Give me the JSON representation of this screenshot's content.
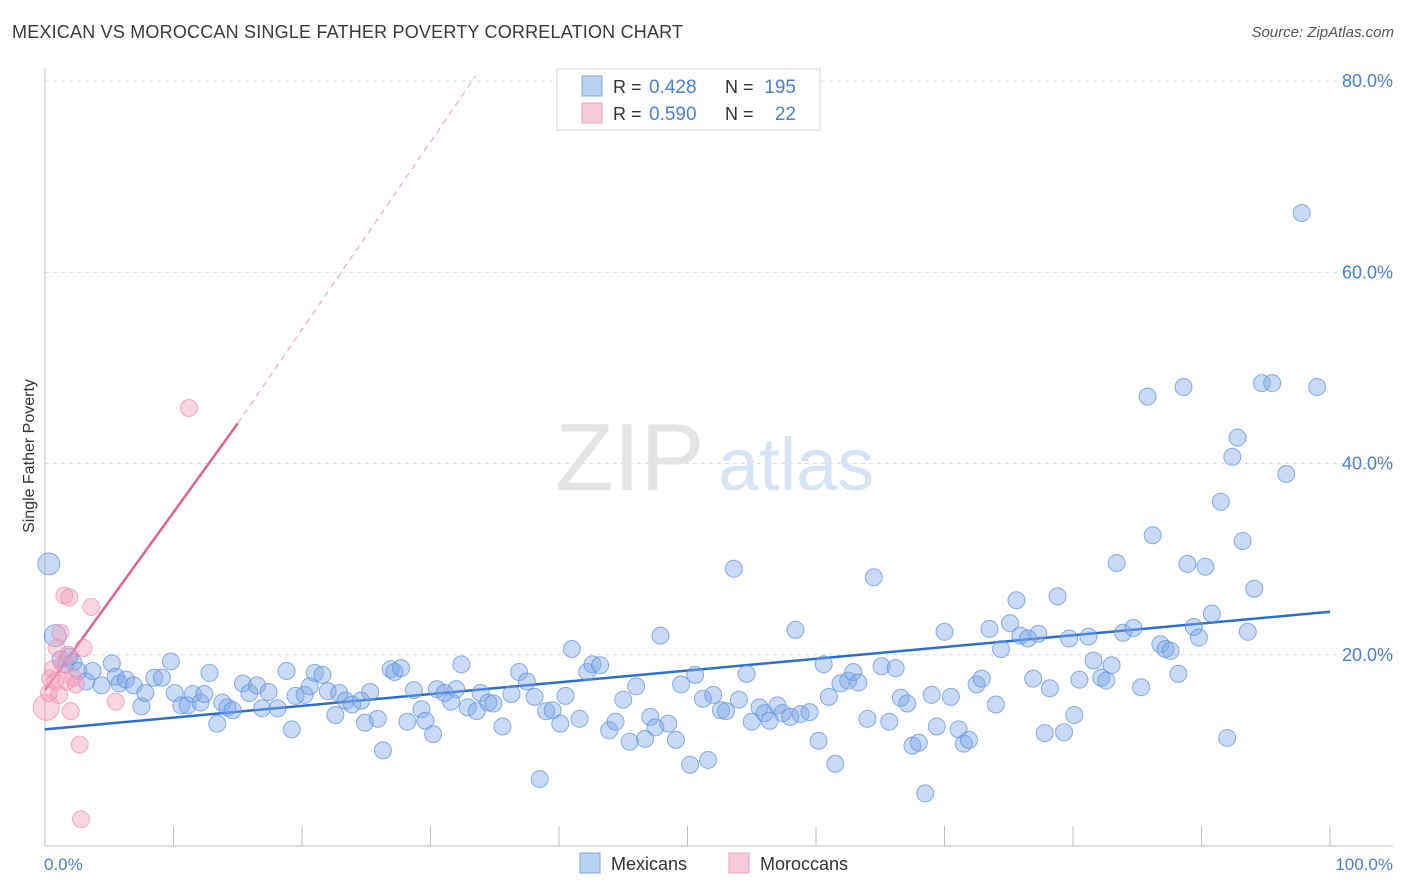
{
  "title": "MEXICAN VS MOROCCAN SINGLE FATHER POVERTY CORRELATION CHART",
  "source": "Source: ZipAtlas.com",
  "watermark": {
    "zip": "ZIP",
    "atlas": "atlas"
  },
  "legend_top": [
    {
      "r_label": "R =",
      "r_value": "0.428",
      "n_label": "N =",
      "n_value": "195",
      "color": "#7ba7e6"
    },
    {
      "r_label": "R =",
      "r_value": "0.590",
      "n_label": "N =",
      "n_value": "22",
      "color": "#f2a0bd"
    }
  ],
  "legend_bottom": [
    "Mexicans",
    "Moroccans"
  ],
  "chart_data": {
    "type": "scatter",
    "title": "MEXICAN VS MOROCCAN SINGLE FATHER POVERTY CORRELATION CHART",
    "xlabel": "",
    "ylabel": "Single Father Poverty",
    "xlim": [
      0,
      100
    ],
    "ylim": [
      0,
      80
    ],
    "x_tick_labels": [
      "0.0%",
      "100.0%"
    ],
    "y_tick_labels": [
      {
        "value": 20,
        "label": "20.0%"
      },
      {
        "value": 40,
        "label": "40.0%"
      },
      {
        "value": 60,
        "label": "60.0%"
      },
      {
        "value": 80,
        "label": "80.0%"
      }
    ],
    "colors": {
      "mexicans": "#7ba7e6",
      "moroccans": "#f2a0bd",
      "mex_line": "#2a6fd0",
      "mor_line": "#e0628f",
      "axis_text": "#4a7fd6"
    },
    "series": [
      {
        "name": "Mexicans",
        "r": 0.428,
        "n": 195,
        "trend": {
          "x0": 0,
          "y0": 12.2,
          "x1": 100,
          "y1": 24.5
        },
        "points": [
          [
            0.3,
            29.5
          ],
          [
            0.8,
            22
          ],
          [
            1.2,
            19.5
          ],
          [
            1.6,
            19
          ],
          [
            1.9,
            19.8
          ],
          [
            2.2,
            19.2
          ],
          [
            2.6,
            18.3
          ],
          [
            3.2,
            17.2
          ],
          [
            3.7,
            18.3
          ],
          [
            4.4,
            16.8
          ],
          [
            5.2,
            19.1
          ],
          [
            5.5,
            17.7
          ],
          [
            5.8,
            17
          ],
          [
            6.3,
            17.4
          ],
          [
            6.9,
            16.8
          ],
          [
            7.5,
            14.6
          ],
          [
            7.8,
            16
          ],
          [
            8.5,
            17.6
          ],
          [
            9.1,
            17.6
          ],
          [
            9.8,
            19.3
          ],
          [
            10.1,
            16
          ],
          [
            10.6,
            14.7
          ],
          [
            11.1,
            14.7
          ],
          [
            11.5,
            15.9
          ],
          [
            12.1,
            15
          ],
          [
            12.4,
            15.9
          ],
          [
            12.8,
            18.1
          ],
          [
            13.4,
            12.8
          ],
          [
            13.8,
            15
          ],
          [
            14.2,
            14.5
          ],
          [
            14.6,
            14.2
          ],
          [
            15.4,
            17
          ],
          [
            15.9,
            16
          ],
          [
            16.5,
            16.8
          ],
          [
            16.9,
            14.4
          ],
          [
            17.4,
            16.1
          ],
          [
            18.1,
            14.4
          ],
          [
            18.8,
            18.3
          ],
          [
            19.2,
            12.2
          ],
          [
            19.5,
            15.7
          ],
          [
            20.2,
            15.8
          ],
          [
            20.6,
            16.7
          ],
          [
            21,
            18.1
          ],
          [
            21.6,
            17.9
          ],
          [
            22,
            16.2
          ],
          [
            22.6,
            13.7
          ],
          [
            22.9,
            16
          ],
          [
            23.4,
            15.2
          ],
          [
            23.9,
            14.8
          ],
          [
            24.6,
            15.2
          ],
          [
            24.9,
            12.9
          ],
          [
            25.3,
            16.1
          ],
          [
            25.9,
            13.3
          ],
          [
            26.3,
            10
          ],
          [
            26.9,
            18.5
          ],
          [
            27.2,
            18.2
          ],
          [
            27.7,
            18.6
          ],
          [
            28.2,
            13
          ],
          [
            28.7,
            16.3
          ],
          [
            29.3,
            14.3
          ],
          [
            29.6,
            13.1
          ],
          [
            30.2,
            11.7
          ],
          [
            30.5,
            16.4
          ],
          [
            31.1,
            16
          ],
          [
            31.6,
            15.1
          ],
          [
            32,
            16.4
          ],
          [
            32.4,
            19
          ],
          [
            32.9,
            14.5
          ],
          [
            33.6,
            14.1
          ],
          [
            33.9,
            16
          ],
          [
            34.5,
            15
          ],
          [
            34.9,
            14.9
          ],
          [
            35.6,
            12.5
          ],
          [
            36.3,
            15.9
          ],
          [
            36.9,
            18.2
          ],
          [
            37.5,
            17.2
          ],
          [
            38.1,
            15.6
          ],
          [
            38.5,
            7
          ],
          [
            39,
            14.1
          ],
          [
            39.5,
            14.2
          ],
          [
            40.1,
            12.8
          ],
          [
            40.5,
            15.7
          ],
          [
            41,
            20.6
          ],
          [
            41.6,
            13.3
          ],
          [
            42.2,
            18.2
          ],
          [
            42.6,
            19
          ],
          [
            43.2,
            18.9
          ],
          [
            43.9,
            12.1
          ],
          [
            44.4,
            13
          ],
          [
            45,
            15.3
          ],
          [
            45.5,
            10.9
          ],
          [
            46,
            16.7
          ],
          [
            46.7,
            11.2
          ],
          [
            47.1,
            13.5
          ],
          [
            47.5,
            12.4
          ],
          [
            47.9,
            22
          ],
          [
            48.5,
            12.8
          ],
          [
            49.1,
            11.1
          ],
          [
            49.5,
            16.9
          ],
          [
            50.2,
            8.5
          ],
          [
            50.6,
            17.9
          ],
          [
            51.2,
            15.4
          ],
          [
            51.6,
            9
          ],
          [
            52,
            15.8
          ],
          [
            52.6,
            14.2
          ],
          [
            53,
            14.1
          ],
          [
            53.6,
            29
          ],
          [
            54,
            15.3
          ],
          [
            54.6,
            18
          ],
          [
            55,
            13
          ],
          [
            55.6,
            14.5
          ],
          [
            56,
            13.9
          ],
          [
            56.4,
            13.1
          ],
          [
            57,
            14.7
          ],
          [
            57.4,
            13.9
          ],
          [
            58,
            13.5
          ],
          [
            58.4,
            22.6
          ],
          [
            58.8,
            13.8
          ],
          [
            59.5,
            14
          ],
          [
            60.2,
            11
          ],
          [
            60.6,
            19
          ],
          [
            61,
            15.6
          ],
          [
            61.5,
            8.6
          ],
          [
            61.9,
            17
          ],
          [
            62.5,
            17.3
          ],
          [
            62.9,
            18.2
          ],
          [
            63.3,
            17.1
          ],
          [
            64,
            13.3
          ],
          [
            64.5,
            28.1
          ],
          [
            65.1,
            18.8
          ],
          [
            65.7,
            13
          ],
          [
            66.2,
            18.6
          ],
          [
            66.6,
            15.5
          ],
          [
            67.1,
            14.9
          ],
          [
            67.5,
            10.5
          ],
          [
            68,
            10.8
          ],
          [
            68.5,
            5.5
          ],
          [
            69,
            15.8
          ],
          [
            69.4,
            12.5
          ],
          [
            70,
            22.4
          ],
          [
            70.5,
            15.6
          ],
          [
            71.1,
            12.2
          ],
          [
            71.5,
            10.7
          ],
          [
            71.9,
            11.1
          ],
          [
            72.5,
            16.9
          ],
          [
            72.9,
            17.5
          ],
          [
            73.5,
            22.7
          ],
          [
            74,
            14.8
          ],
          [
            74.4,
            20.6
          ],
          [
            75.1,
            23.3
          ],
          [
            75.6,
            25.7
          ],
          [
            75.9,
            22
          ],
          [
            76.5,
            21.7
          ],
          [
            76.9,
            17.5
          ],
          [
            77.3,
            22.2
          ],
          [
            77.8,
            11.8
          ],
          [
            78.2,
            16.5
          ],
          [
            78.8,
            26.1
          ],
          [
            79.3,
            11.9
          ],
          [
            79.7,
            21.7
          ],
          [
            80.1,
            13.7
          ],
          [
            80.5,
            17.4
          ],
          [
            81.2,
            21.9
          ],
          [
            81.6,
            19.4
          ],
          [
            82.2,
            17.6
          ],
          [
            82.6,
            17.3
          ],
          [
            83,
            18.9
          ],
          [
            83.4,
            29.6
          ],
          [
            83.9,
            22.3
          ],
          [
            84.7,
            22.8
          ],
          [
            85.3,
            16.6
          ],
          [
            85.8,
            47
          ],
          [
            86.2,
            32.5
          ],
          [
            86.8,
            21.1
          ],
          [
            87.2,
            20.6
          ],
          [
            87.6,
            20.4
          ],
          [
            88.2,
            18
          ],
          [
            88.6,
            48
          ],
          [
            88.9,
            29.5
          ],
          [
            89.4,
            22.9
          ],
          [
            89.8,
            21.8
          ],
          [
            90.3,
            29.2
          ],
          [
            90.8,
            24.3
          ],
          [
            91.5,
            36
          ],
          [
            92,
            11.3
          ],
          [
            92.4,
            40.7
          ],
          [
            92.8,
            42.7
          ],
          [
            93.2,
            31.9
          ],
          [
            93.6,
            22.4
          ],
          [
            94.1,
            26.9
          ],
          [
            94.7,
            48.4
          ],
          [
            95.5,
            48.4
          ],
          [
            96.6,
            38.9
          ],
          [
            97.8,
            66.2
          ],
          [
            99,
            48
          ]
        ]
      },
      {
        "name": "Moroccans",
        "r": 0.59,
        "n": 22,
        "trend": {
          "x0": 0,
          "y0": 16.3,
          "x1": 15,
          "y1": 44.2
        },
        "trend_dashed": {
          "x0": 15,
          "y0": 44.2,
          "x1": 33.5,
          "y1": 80.5
        },
        "points": [
          [
            0.1,
            14.5
          ],
          [
            0.3,
            16
          ],
          [
            0.4,
            17.5
          ],
          [
            0.6,
            18.5
          ],
          [
            0.8,
            17.2
          ],
          [
            0.9,
            20.7
          ],
          [
            1.1,
            15.8
          ],
          [
            1.2,
            22.3
          ],
          [
            1.4,
            19
          ],
          [
            1.5,
            26.2
          ],
          [
            1.7,
            17.2
          ],
          [
            1.8,
            20
          ],
          [
            1.9,
            26
          ],
          [
            2,
            14.1
          ],
          [
            2.2,
            17.6
          ],
          [
            2.4,
            16.9
          ],
          [
            2.7,
            10.6
          ],
          [
            2.8,
            2.8
          ],
          [
            3,
            20.7
          ],
          [
            3.6,
            25
          ],
          [
            5.5,
            15.1
          ],
          [
            11.2,
            45.8
          ]
        ]
      }
    ]
  }
}
